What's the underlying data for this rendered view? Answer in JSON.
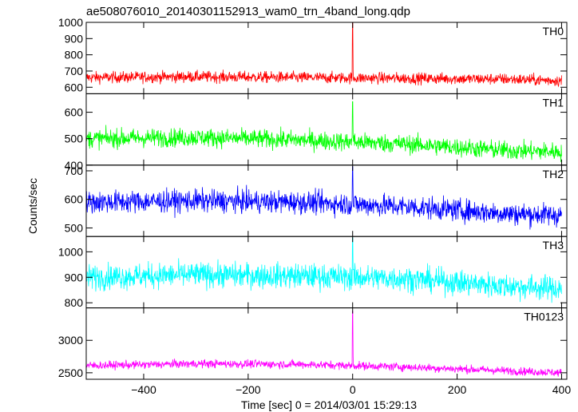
{
  "chart_data": {
    "type": "line",
    "title": "ae508076010_20140301152913_wam0_trn_4band_long.qdp",
    "xlabel": "Time [sec] 0 = 2014/03/01 15:29:13",
    "ylabel": "Counts/sec",
    "xlim": [
      -510,
      410
    ],
    "x_ticks": [
      -400,
      -200,
      0,
      200,
      400
    ],
    "x_tick_labels": [
      "−400",
      "−200",
      "0",
      "200",
      "400"
    ],
    "panels": [
      {
        "name": "TH0",
        "color": "#ff0000",
        "ylim": [
          560,
          1000
        ],
        "y_ticks": [
          600,
          700,
          800,
          900,
          1000
        ],
        "y_tick_labels": [
          "600",
          "700",
          "800",
          "900",
          "1000"
        ],
        "baseline": [
          [
            -510,
            660
          ],
          [
            -300,
            665
          ],
          [
            -100,
            660
          ],
          [
            100,
            655
          ],
          [
            300,
            650
          ],
          [
            400,
            640
          ]
        ],
        "noise": 25,
        "spike": {
          "x": 0,
          "peak": 1000,
          "decay": 700
        }
      },
      {
        "name": "TH1",
        "color": "#00ff00",
        "ylim": [
          400,
          670
        ],
        "y_ticks": [
          400,
          500,
          600
        ],
        "y_tick_labels": [
          "400",
          "500",
          "600"
        ],
        "baseline": [
          [
            -510,
            500
          ],
          [
            -300,
            505
          ],
          [
            -100,
            495
          ],
          [
            100,
            480
          ],
          [
            300,
            455
          ],
          [
            400,
            450
          ]
        ],
        "noise": 25,
        "spike": {
          "x": 0,
          "peak": 640,
          "decay": 520
        }
      },
      {
        "name": "TH2",
        "color": "#0000ff",
        "ylim": [
          470,
          720
        ],
        "y_ticks": [
          500,
          600,
          700
        ],
        "y_tick_labels": [
          "500",
          "600",
          "700"
        ],
        "baseline": [
          [
            -510,
            590
          ],
          [
            -300,
            595
          ],
          [
            -100,
            590
          ],
          [
            100,
            575
          ],
          [
            300,
            550
          ],
          [
            400,
            545
          ]
        ],
        "noise": 28,
        "spike": {
          "x": 0,
          "peak": 715,
          "decay": 610
        }
      },
      {
        "name": "TH3",
        "color": "#00ffff",
        "ylim": [
          780,
          1060
        ],
        "y_ticks": [
          800,
          900,
          1000
        ],
        "y_tick_labels": [
          "800",
          "900",
          "1000"
        ],
        "baseline": [
          [
            -510,
            900
          ],
          [
            -300,
            910
          ],
          [
            -100,
            905
          ],
          [
            100,
            895
          ],
          [
            300,
            865
          ],
          [
            400,
            855
          ]
        ],
        "noise": 35,
        "spike": {
          "x": 0,
          "peak": 1055,
          "decay": 930
        }
      },
      {
        "name": "TH0123",
        "color": "#ff00ff",
        "ylim": [
          2400,
          3500
        ],
        "y_ticks": [
          2500,
          3000
        ],
        "y_tick_labels": [
          "2500",
          "3000"
        ],
        "baseline": [
          [
            -510,
            2610
          ],
          [
            -300,
            2640
          ],
          [
            -100,
            2630
          ],
          [
            100,
            2590
          ],
          [
            300,
            2530
          ],
          [
            400,
            2500
          ]
        ],
        "noise": 45,
        "spike": {
          "x": 0,
          "peak": 3450,
          "decay": 2750
        }
      }
    ]
  }
}
